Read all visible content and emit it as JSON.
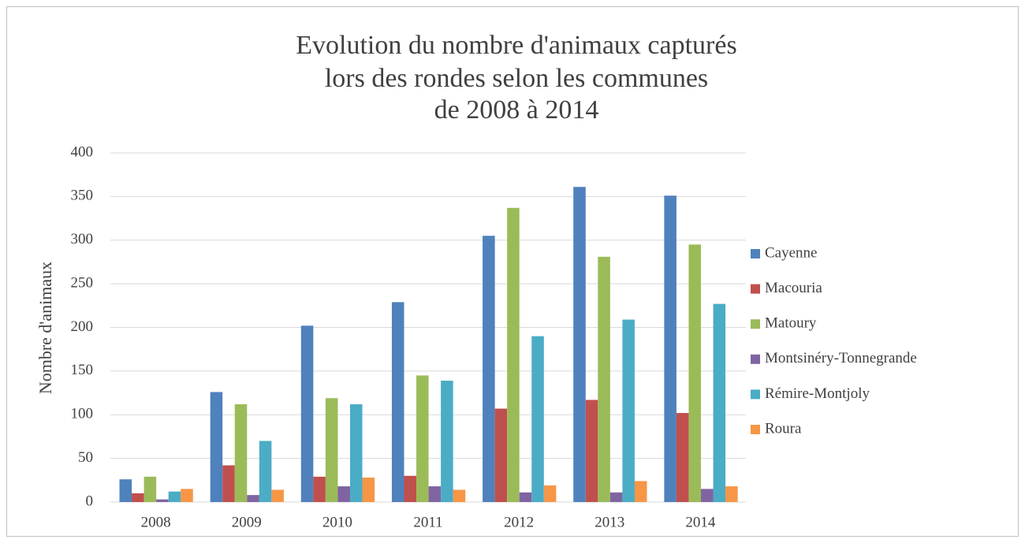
{
  "chart_data": {
    "type": "bar",
    "title": [
      "Evolution du nombre d'animaux capturés",
      "lors des rondes selon les communes",
      "de 2008 à 2014"
    ],
    "y_label": "Nombre d'animaux",
    "categories": [
      "2008",
      "2009",
      "2010",
      "2011",
      "2012",
      "2013",
      "2014"
    ],
    "series": [
      {
        "name": "Cayenne",
        "color": "#4f81bd",
        "values": [
          26,
          126,
          202,
          229,
          305,
          361,
          351
        ]
      },
      {
        "name": "Macouria",
        "color": "#c0504d",
        "values": [
          10,
          42,
          29,
          30,
          107,
          117,
          102
        ]
      },
      {
        "name": "Matoury",
        "color": "#9bbb59",
        "values": [
          29,
          112,
          119,
          145,
          337,
          281,
          295
        ]
      },
      {
        "name": "Montsinéry-Tonnegrande",
        "color": "#8064a2",
        "values": [
          3,
          8,
          18,
          18,
          11,
          11,
          15
        ]
      },
      {
        "name": "Rémire-Montjoly",
        "color": "#4bacc6",
        "values": [
          12,
          70,
          112,
          139,
          190,
          209,
          227
        ]
      },
      {
        "name": "Roura",
        "color": "#f79646",
        "values": [
          15,
          14,
          28,
          14,
          19,
          24,
          18
        ]
      }
    ],
    "ylim": [
      0,
      400
    ],
    "yticks": [
      0,
      50,
      100,
      150,
      200,
      250,
      300,
      350,
      400
    ],
    "grid": true,
    "legend": "right"
  }
}
